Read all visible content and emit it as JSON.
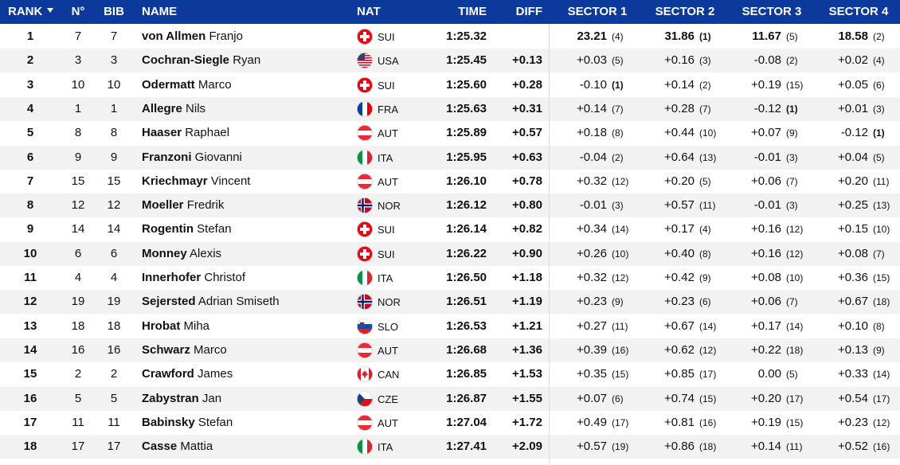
{
  "header": {
    "rank": "RANK",
    "no": "N°",
    "bib": "BIB",
    "name": "NAME",
    "nat": "NAT",
    "time": "TIME",
    "diff": "DIFF",
    "sectors": [
      "SECTOR 1",
      "SECTOR 2",
      "SECTOR 3",
      "SECTOR 4"
    ]
  },
  "table": {
    "rows": [
      {
        "rank": 1,
        "no": 7,
        "bib": 7,
        "surname": "von Allmen",
        "first_name": "Franjo",
        "nat": "SUI",
        "time": "1:25.32",
        "sectors": [
          {
            "value": "23.21",
            "rank": "(4)"
          },
          {
            "value": "31.86",
            "rank": "(1)"
          },
          {
            "value": "11.67",
            "rank": "(5)"
          },
          {
            "value": "18.58",
            "rank": "(2)"
          }
        ]
      },
      {
        "rank": 2,
        "no": 3,
        "bib": 3,
        "surname": "Cochran-Siegle",
        "first_name": "Ryan",
        "nat": "USA",
        "time": "1:25.45",
        "diff": "+0.13",
        "sectors": [
          {
            "value": "+0.03",
            "rank": "(5)"
          },
          {
            "value": "+0.16",
            "rank": "(3)"
          },
          {
            "value": "-0.08",
            "rank": "(2)"
          },
          {
            "value": "+0.02",
            "rank": "(4)"
          }
        ]
      },
      {
        "rank": 3,
        "no": 10,
        "bib": 10,
        "surname": "Odermatt",
        "first_name": "Marco",
        "nat": "SUI",
        "time": "1:25.60",
        "diff": "+0.28",
        "sectors": [
          {
            "value": "-0.10",
            "rank": "(1)"
          },
          {
            "value": "+0.14",
            "rank": "(2)"
          },
          {
            "value": "+0.19",
            "rank": "(15)"
          },
          {
            "value": "+0.05",
            "rank": "(6)"
          }
        ]
      },
      {
        "rank": 4,
        "no": 1,
        "bib": 1,
        "surname": "Allegre",
        "first_name": "Nils",
        "nat": "FRA",
        "time": "1:25.63",
        "diff": "+0.31",
        "sectors": [
          {
            "value": "+0.14",
            "rank": "(7)"
          },
          {
            "value": "+0.28",
            "rank": "(7)"
          },
          {
            "value": "-0.12",
            "rank": "(1)"
          },
          {
            "value": "+0.01",
            "rank": "(3)"
          }
        ]
      },
      {
        "rank": 5,
        "no": 8,
        "bib": 8,
        "surname": "Haaser",
        "first_name": "Raphael",
        "nat": "AUT",
        "time": "1:25.89",
        "diff": "+0.57",
        "sectors": [
          {
            "value": "+0.18",
            "rank": "(8)"
          },
          {
            "value": "+0.44",
            "rank": "(10)"
          },
          {
            "value": "+0.07",
            "rank": "(9)"
          },
          {
            "value": "-0.12",
            "rank": "(1)"
          }
        ]
      },
      {
        "rank": 6,
        "no": 9,
        "bib": 9,
        "surname": "Franzoni",
        "first_name": "Giovanni",
        "nat": "ITA",
        "time": "1:25.95",
        "diff": "+0.63",
        "sectors": [
          {
            "value": "-0.04",
            "rank": "(2)"
          },
          {
            "value": "+0.64",
            "rank": "(13)"
          },
          {
            "value": "-0.01",
            "rank": "(3)"
          },
          {
            "value": "+0.04",
            "rank": "(5)"
          }
        ]
      },
      {
        "rank": 7,
        "no": 15,
        "bib": 15,
        "surname": "Kriechmayr",
        "first_name": "Vincent",
        "nat": "AUT",
        "time": "1:26.10",
        "diff": "+0.78",
        "sectors": [
          {
            "value": "+0.32",
            "rank": "(12)"
          },
          {
            "value": "+0.20",
            "rank": "(5)"
          },
          {
            "value": "+0.06",
            "rank": "(7)"
          },
          {
            "value": "+0.20",
            "rank": "(11)"
          }
        ]
      },
      {
        "rank": 8,
        "no": 12,
        "bib": 12,
        "surname": "Moeller",
        "first_name": "Fredrik",
        "nat": "NOR",
        "time": "1:26.12",
        "diff": "+0.80",
        "sectors": [
          {
            "value": "-0.01",
            "rank": "(3)"
          },
          {
            "value": "+0.57",
            "rank": "(11)"
          },
          {
            "value": "-0.01",
            "rank": "(3)"
          },
          {
            "value": "+0.25",
            "rank": "(13)"
          }
        ]
      },
      {
        "rank": 9,
        "no": 14,
        "bib": 14,
        "surname": "Rogentin",
        "first_name": "Stefan",
        "nat": "SUI",
        "time": "1:26.14",
        "diff": "+0.82",
        "sectors": [
          {
            "value": "+0.34",
            "rank": "(14)"
          },
          {
            "value": "+0.17",
            "rank": "(4)"
          },
          {
            "value": "+0.16",
            "rank": "(12)"
          },
          {
            "value": "+0.15",
            "rank": "(10)"
          }
        ]
      },
      {
        "rank": 10,
        "no": 6,
        "bib": 6,
        "surname": "Monney",
        "first_name": "Alexis",
        "nat": "SUI",
        "time": "1:26.22",
        "diff": "+0.90",
        "sectors": [
          {
            "value": "+0.26",
            "rank": "(10)"
          },
          {
            "value": "+0.40",
            "rank": "(8)"
          },
          {
            "value": "+0.16",
            "rank": "(12)"
          },
          {
            "value": "+0.08",
            "rank": "(7)"
          }
        ]
      },
      {
        "rank": 11,
        "no": 4,
        "bib": 4,
        "surname": "Innerhofer",
        "first_name": "Christof",
        "nat": "ITA",
        "time": "1:26.50",
        "diff": "+1.18",
        "sectors": [
          {
            "value": "+0.32",
            "rank": "(12)"
          },
          {
            "value": "+0.42",
            "rank": "(9)"
          },
          {
            "value": "+0.08",
            "rank": "(10)"
          },
          {
            "value": "+0.36",
            "rank": "(15)"
          }
        ]
      },
      {
        "rank": 12,
        "no": 19,
        "bib": 19,
        "surname": "Sejersted",
        "first_name": "Adrian Smiseth",
        "nat": "NOR",
        "time": "1:26.51",
        "diff": "+1.19",
        "sectors": [
          {
            "value": "+0.23",
            "rank": "(9)"
          },
          {
            "value": "+0.23",
            "rank": "(6)"
          },
          {
            "value": "+0.06",
            "rank": "(7)"
          },
          {
            "value": "+0.67",
            "rank": "(18)"
          }
        ]
      },
      {
        "rank": 13,
        "no": 18,
        "bib": 18,
        "surname": "Hrobat",
        "first_name": "Miha",
        "nat": "SLO",
        "time": "1:26.53",
        "diff": "+1.21",
        "sectors": [
          {
            "value": "+0.27",
            "rank": "(11)"
          },
          {
            "value": "+0.67",
            "rank": "(14)"
          },
          {
            "value": "+0.17",
            "rank": "(14)"
          },
          {
            "value": "+0.10",
            "rank": "(8)"
          }
        ]
      },
      {
        "rank": 14,
        "no": 16,
        "bib": 16,
        "surname": "Schwarz",
        "first_name": "Marco",
        "nat": "AUT",
        "time": "1:26.68",
        "diff": "+1.36",
        "sectors": [
          {
            "value": "+0.39",
            "rank": "(16)"
          },
          {
            "value": "+0.62",
            "rank": "(12)"
          },
          {
            "value": "+0.22",
            "rank": "(18)"
          },
          {
            "value": "+0.13",
            "rank": "(9)"
          }
        ]
      },
      {
        "rank": 15,
        "no": 2,
        "bib": 2,
        "surname": "Crawford",
        "first_name": "James",
        "nat": "CAN",
        "time": "1:26.85",
        "diff": "+1.53",
        "sectors": [
          {
            "value": "+0.35",
            "rank": "(15)"
          },
          {
            "value": "+0.85",
            "rank": "(17)"
          },
          {
            "value": "0.00",
            "rank": "(5)"
          },
          {
            "value": "+0.33",
            "rank": "(14)"
          }
        ]
      },
      {
        "rank": 16,
        "no": 5,
        "bib": 5,
        "surname": "Zabystran",
        "first_name": "Jan",
        "nat": "CZE",
        "time": "1:26.87",
        "diff": "+1.55",
        "sectors": [
          {
            "value": "+0.07",
            "rank": "(6)"
          },
          {
            "value": "+0.74",
            "rank": "(15)"
          },
          {
            "value": "+0.20",
            "rank": "(17)"
          },
          {
            "value": "+0.54",
            "rank": "(17)"
          }
        ]
      },
      {
        "rank": 17,
        "no": 11,
        "bib": 11,
        "surname": "Babinsky",
        "first_name": "Stefan",
        "nat": "AUT",
        "time": "1:27.04",
        "diff": "+1.72",
        "sectors": [
          {
            "value": "+0.49",
            "rank": "(17)"
          },
          {
            "value": "+0.81",
            "rank": "(16)"
          },
          {
            "value": "+0.19",
            "rank": "(15)"
          },
          {
            "value": "+0.23",
            "rank": "(12)"
          }
        ]
      },
      {
        "rank": 18,
        "no": 17,
        "bib": 17,
        "surname": "Casse",
        "first_name": "Mattia",
        "nat": "ITA",
        "time": "1:27.41",
        "diff": "+2.09",
        "sectors": [
          {
            "value": "+0.57",
            "rank": "(19)"
          },
          {
            "value": "+0.86",
            "rank": "(18)"
          },
          {
            "value": "+0.14",
            "rank": "(11)"
          },
          {
            "value": "+0.52",
            "rank": "(16)"
          }
        ]
      }
    ]
  }
}
